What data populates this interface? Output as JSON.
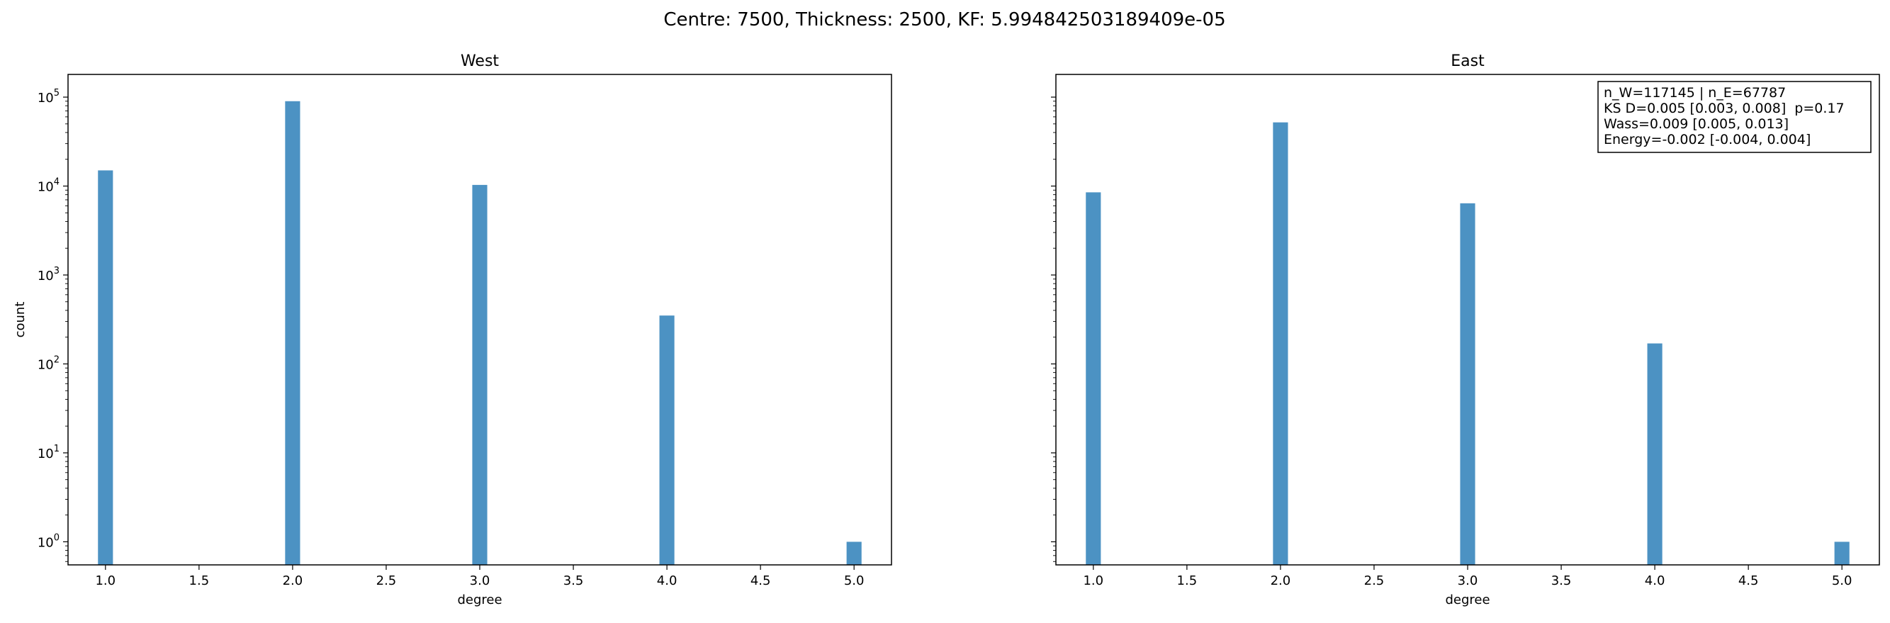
{
  "figure": {
    "suptitle": "Centre: 7500, Thickness: 2500, KF: 5.994842503189409e-05"
  },
  "colors": {
    "bar": "#4c92c3",
    "axis": "#000000",
    "background": "#ffffff"
  },
  "chart_data": [
    {
      "type": "bar",
      "title": "West",
      "xlabel": "degree",
      "ylabel": "count",
      "yscale": "log",
      "xlim": [
        0.8,
        5.2
      ],
      "ylim": [
        0.55,
        180000
      ],
      "x_ticks": [
        "1.0",
        "1.5",
        "2.0",
        "2.5",
        "3.0",
        "3.5",
        "4.0",
        "4.5",
        "5.0"
      ],
      "y_ticks": [
        "10^0",
        "10^1",
        "10^2",
        "10^3",
        "10^4",
        "10^5"
      ],
      "x": [
        1,
        2,
        3,
        4,
        5
      ],
      "values": [
        15000,
        90000,
        10300,
        350,
        1
      ],
      "bar_width": 0.08,
      "annotation": []
    },
    {
      "type": "bar",
      "title": "East",
      "xlabel": "degree",
      "ylabel": "",
      "yscale": "log",
      "xlim": [
        0.8,
        5.2
      ],
      "ylim": [
        0.55,
        180000
      ],
      "x_ticks": [
        "1.0",
        "1.5",
        "2.0",
        "2.5",
        "3.0",
        "3.5",
        "4.0",
        "4.5",
        "5.0"
      ],
      "y_ticks": [],
      "x": [
        1,
        2,
        3,
        4,
        5
      ],
      "values": [
        8500,
        52000,
        6400,
        170,
        1
      ],
      "bar_width": 0.08,
      "annotation": [
        "n_W=117145 | n_E=67787",
        "KS D=0.005 [0.003, 0.008]  p=0.17",
        "Wass=0.009 [0.005, 0.013]",
        "Energy=-0.002 [-0.004, 0.004]"
      ]
    }
  ]
}
